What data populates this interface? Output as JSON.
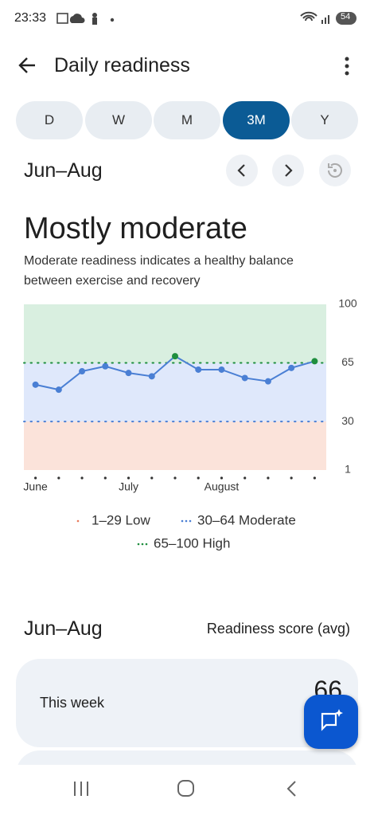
{
  "status_bar": {
    "time": "23:33",
    "battery": "54"
  },
  "header": {
    "title": "Daily readiness"
  },
  "tabs": [
    "D",
    "W",
    "M",
    "3M",
    "Y"
  ],
  "selected_tab": 3,
  "period": "Jun–Aug",
  "summary": {
    "title": "Mostly moderate",
    "description": "Moderate readiness indicates a healthy balance between exercise and recovery"
  },
  "chart_data": {
    "type": "line",
    "categories": [
      "June",
      null,
      null,
      null,
      "July",
      null,
      null,
      null,
      "August",
      null,
      null,
      null,
      null
    ],
    "values": [
      52,
      49,
      60,
      63,
      59,
      57,
      69,
      61,
      61,
      56,
      54,
      62,
      66
    ],
    "color": "#4a7fd4",
    "ylim": [
      1,
      100
    ],
    "yticks": [
      1,
      30,
      65,
      100
    ],
    "bands": [
      {
        "label": "1–29 Low",
        "color": "#e8795a",
        "fill": "#fbe3da"
      },
      {
        "label": "30–64 Moderate",
        "color": "#4a7fd4",
        "fill": "#dfe8fb"
      },
      {
        "label": "65–100 High",
        "color": "#1e8e3e",
        "fill": "#d9efe0"
      }
    ]
  },
  "summary_table": {
    "period": "Jun–Aug",
    "column": "Readiness score (avg)",
    "rows": [
      {
        "label": "This week",
        "value": 66
      }
    ]
  }
}
